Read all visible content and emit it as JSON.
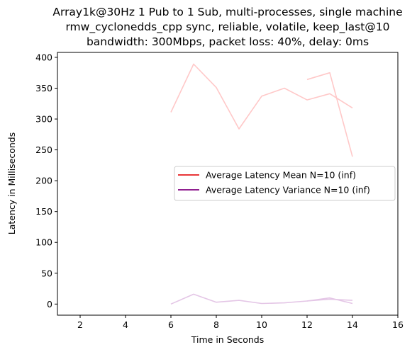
{
  "chart_data": {
    "type": "line",
    "title_lines": [
      "Array1k@30Hz 1 Pub to 1 Sub, multi-processes, single machine",
      "rmw_cyclonedds_cpp sync, reliable, volatile, keep_last@10",
      "bandwidth: 300Mbps, packet loss: 40%, delay: 0ms"
    ],
    "xlabel": "Time in Seconds",
    "ylabel": "Latency in Milliseconds",
    "xlim": [
      1,
      16
    ],
    "ylim": [
      -18,
      408
    ],
    "xticks": [
      2,
      4,
      6,
      8,
      10,
      12,
      14,
      16
    ],
    "yticks": [
      0,
      50,
      100,
      150,
      200,
      250,
      300,
      350,
      400
    ],
    "grid": false,
    "legend_position": "center-right",
    "legend": [
      {
        "label": "Average Latency Mean N=10 (inf)",
        "color": "#e41a1c"
      },
      {
        "label": "Average Latency Variance N=10 (inf)",
        "color": "#800080"
      }
    ],
    "series": [
      {
        "color": "#ffc8c8",
        "x": [
          6,
          7,
          8,
          9,
          10,
          11,
          12,
          13,
          14
        ],
        "y": [
          311,
          389,
          351,
          284,
          337,
          350,
          331,
          341,
          318
        ]
      },
      {
        "color": "#ffc8c8",
        "x": [
          12,
          13,
          14
        ],
        "y": [
          364,
          375,
          239
        ]
      },
      {
        "color": "#e4c6e6",
        "x": [
          6,
          7,
          8,
          9,
          10,
          11,
          12,
          13,
          14
        ],
        "y": [
          0,
          16,
          3,
          6,
          1,
          2,
          5,
          8,
          6
        ]
      },
      {
        "color": "#e4c6e6",
        "x": [
          12,
          13,
          14
        ],
        "y": [
          5,
          10,
          1
        ]
      }
    ]
  }
}
